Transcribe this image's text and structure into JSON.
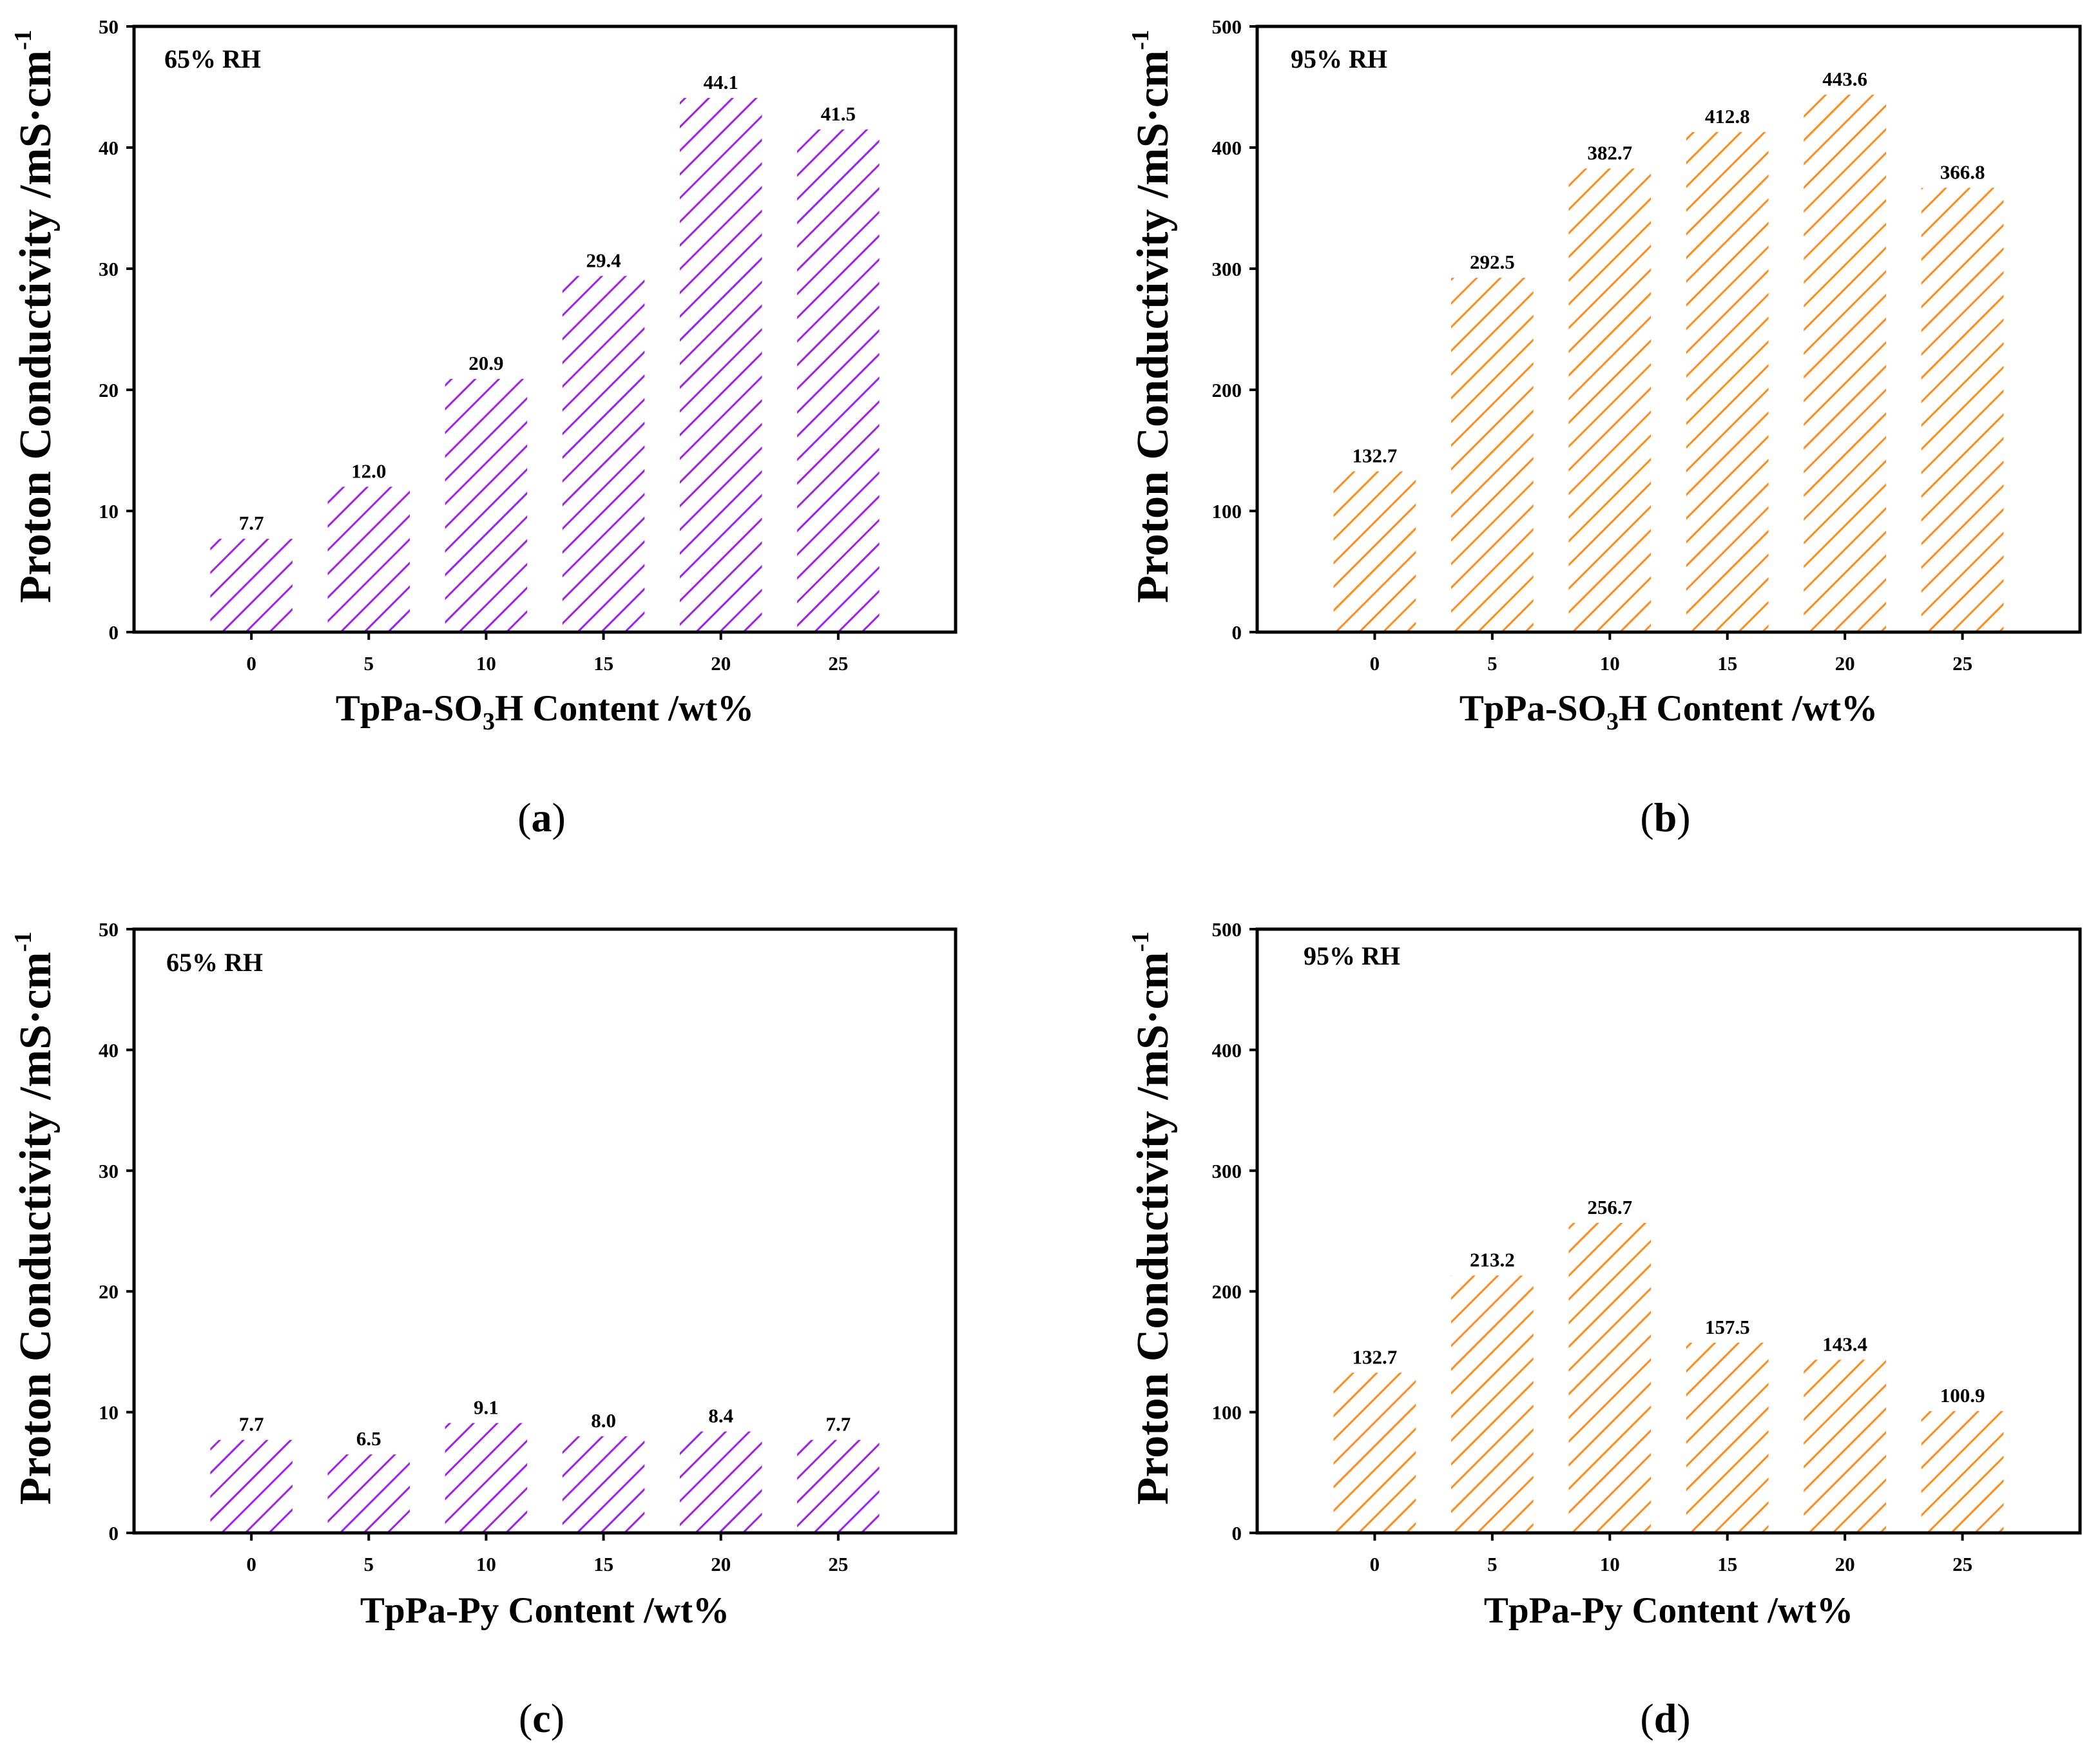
{
  "chart_data": [
    {
      "type": "bar",
      "panel": "(a)",
      "caption_letter": "a",
      "annotation": "65% RH",
      "categories": [
        "0",
        "5",
        "10",
        "15",
        "20",
        "25"
      ],
      "values": [
        7.7,
        12.0,
        20.9,
        29.4,
        44.1,
        41.5
      ],
      "value_labels": [
        "7.7",
        "12.0",
        "20.9",
        "29.4",
        "44.1",
        "41.5"
      ],
      "xlabel_main": "TpPa-SO",
      "xlabel_sub": "3",
      "xlabel_tail": "H Content /wt%",
      "ylabel": "Proton Conductivity /mS·cm",
      "ylabel_sup": "-1",
      "ylim": [
        0,
        50
      ],
      "yticks": [
        "0",
        "10",
        "20",
        "30",
        "40",
        "50"
      ],
      "color": "#a020f0"
    },
    {
      "type": "bar",
      "panel": "(b)",
      "caption_letter": "b",
      "annotation": "95% RH",
      "categories": [
        "0",
        "5",
        "10",
        "15",
        "20",
        "25"
      ],
      "values": [
        132.7,
        292.5,
        382.7,
        412.8,
        443.6,
        366.8
      ],
      "value_labels": [
        "132.7",
        "292.5",
        "382.7",
        "412.8",
        "443.6",
        "366.8"
      ],
      "xlabel_main": "TpPa-SO",
      "xlabel_sub": "3",
      "xlabel_tail": "H Content /wt%",
      "ylabel": "Proton Conductivity /mS·cm",
      "ylabel_sup": "-1",
      "ylim": [
        0,
        500
      ],
      "yticks": [
        "0",
        "100",
        "200",
        "300",
        "400",
        "500"
      ],
      "color": "#ff8c1a"
    },
    {
      "type": "bar",
      "panel": "(c)",
      "caption_letter": "c",
      "annotation": "65% RH",
      "categories": [
        "0",
        "5",
        "10",
        "15",
        "20",
        "25"
      ],
      "values": [
        7.7,
        6.5,
        9.1,
        8.0,
        8.4,
        7.7
      ],
      "value_labels": [
        "7.7",
        "6.5",
        "9.1",
        "8.0",
        "8.4",
        "7.7"
      ],
      "xlabel_main": "TpPa-Py Content /wt%",
      "xlabel_sub": "",
      "xlabel_tail": "",
      "ylabel": "Proton Conductivity /mS·cm",
      "ylabel_sup": "-1",
      "ylim": [
        0,
        50
      ],
      "yticks": [
        "0",
        "10",
        "20",
        "30",
        "40",
        "50"
      ],
      "color": "#a020f0"
    },
    {
      "type": "bar",
      "panel": "(d)",
      "caption_letter": "d",
      "annotation": "95% RH",
      "categories": [
        "0",
        "5",
        "10",
        "15",
        "20",
        "25"
      ],
      "values": [
        132.7,
        213.2,
        256.7,
        157.5,
        143.4,
        100.9
      ],
      "value_labels": [
        "132.7",
        "213.2",
        "256.7",
        "157.5",
        "143.4",
        "100.9"
      ],
      "xlabel_main": "TpPa-Py Content /wt%",
      "xlabel_sub": "",
      "xlabel_tail": "",
      "ylabel": "Proton Conductivity /mS·cm",
      "ylabel_sup": "-1",
      "ylim": [
        0,
        500
      ],
      "yticks": [
        "0",
        "100",
        "200",
        "300",
        "400",
        "500"
      ],
      "color": "#ff8c1a"
    }
  ]
}
